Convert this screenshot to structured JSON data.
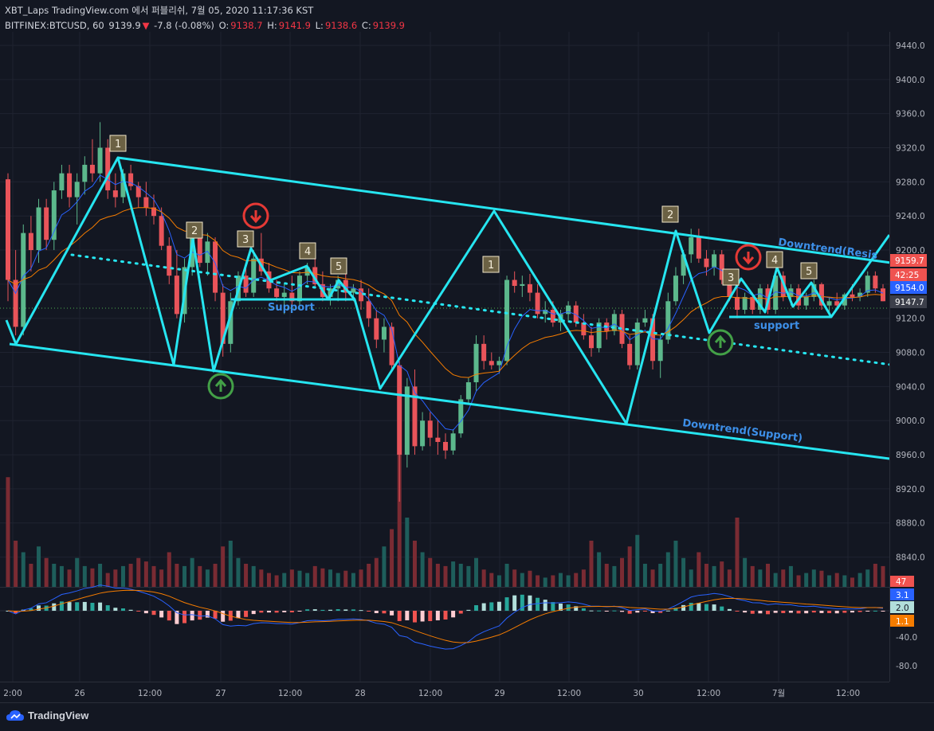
{
  "header": {
    "line1": "XBT_Laps TradingView.com 에서 퍼블리쉬, 7월 05, 2020 11:17:36 KST",
    "symbol": "BITFINEX:BTCUSD, 60",
    "last": "9139.9",
    "arrow": "▼",
    "change": "-7.8 (-0.08%)",
    "o_label": "O:",
    "o_value": "9138.7",
    "h_label": "H:",
    "h_value": "9141.9",
    "l_label": "L:",
    "l_value": "9138.6",
    "c_label": "C:",
    "c_value": "9139.9"
  },
  "footer": {
    "brand": "TradingView"
  },
  "colors": {
    "background": "#131722",
    "up": "#26a69a",
    "down": "#ef5350",
    "pattern": "#26e5f0",
    "label_blue": "#3d8fe8",
    "ma_blue": "#2962ff",
    "ma_orange": "#f57c00"
  },
  "chart_data": {
    "type": "candlestick",
    "price_axis": {
      "ticks": [
        "9440.0",
        "9400.0",
        "9360.0",
        "9320.0",
        "9280.0",
        "9240.0",
        "9200.0",
        "9160.0",
        "9120.0",
        "9080.0",
        "9040.0",
        "9000.0",
        "8960.0",
        "8920.0",
        "8880.0",
        "8840.0"
      ],
      "range": [
        8830,
        9460
      ]
    },
    "price_badges": [
      "9159.7",
      "42:25",
      "9154.0",
      "9147.7"
    ],
    "volume_badge": "47",
    "macd_axis": {
      "ticks": [
        "-40.0",
        "-80.0"
      ],
      "badges": [
        "3.1",
        "2.0",
        "1.1"
      ]
    },
    "time_axis": [
      "2:00",
      "26",
      "12:00",
      "27",
      "12:00",
      "28",
      "12:00",
      "29",
      "12:00",
      "30",
      "12:00",
      "7월",
      "12:00"
    ],
    "labels": {
      "resistance": "Downtrend(Resis",
      "support_trend": "Downtrend(Support)",
      "support_left": "Support",
      "support_right": "support",
      "points_left": [
        "1",
        "2",
        "3",
        "4",
        "5"
      ],
      "points_mid": [
        "1",
        "2"
      ],
      "points_right": [
        "3",
        "4",
        "5"
      ]
    },
    "candles": [
      [
        9283,
        9290,
        9140,
        9165
      ],
      [
        9165,
        9200,
        9100,
        9110
      ],
      [
        9110,
        9230,
        9100,
        9220
      ],
      [
        9220,
        9240,
        9175,
        9200
      ],
      [
        9200,
        9260,
        9185,
        9250
      ],
      [
        9250,
        9260,
        9200,
        9212
      ],
      [
        9212,
        9280,
        9200,
        9270
      ],
      [
        9270,
        9300,
        9260,
        9290
      ],
      [
        9290,
        9300,
        9250,
        9262
      ],
      [
        9262,
        9290,
        9230,
        9280
      ],
      [
        9280,
        9310,
        9265,
        9300
      ],
      [
        9300,
        9330,
        9280,
        9290
      ],
      [
        9290,
        9350,
        9280,
        9320
      ],
      [
        9320,
        9330,
        9260,
        9270
      ],
      [
        9270,
        9290,
        9250,
        9262
      ],
      [
        9262,
        9295,
        9255,
        9290
      ],
      [
        9290,
        9300,
        9270,
        9275
      ],
      [
        9275,
        9280,
        9250,
        9262
      ],
      [
        9262,
        9280,
        9240,
        9250
      ],
      [
        9250,
        9265,
        9230,
        9240
      ],
      [
        9240,
        9250,
        9200,
        9205
      ],
      [
        9205,
        9215,
        9160,
        9170
      ],
      [
        9170,
        9200,
        9120,
        9125
      ],
      [
        9125,
        9190,
        9115,
        9180
      ],
      [
        9180,
        9220,
        9170,
        9215
      ],
      [
        9215,
        9225,
        9180,
        9185
      ],
      [
        9185,
        9220,
        9170,
        9210
      ],
      [
        9210,
        9215,
        9140,
        9150
      ],
      [
        9150,
        9160,
        9075,
        9090
      ],
      [
        9090,
        9150,
        9080,
        9140
      ],
      [
        9140,
        9175,
        9135,
        9170
      ],
      [
        9170,
        9180,
        9145,
        9150
      ],
      [
        9150,
        9200,
        9145,
        9190
      ],
      [
        9190,
        9220,
        9170,
        9175
      ],
      [
        9175,
        9185,
        9150,
        9155
      ],
      [
        9155,
        9165,
        9140,
        9145
      ],
      [
        9145,
        9160,
        9125,
        9150
      ],
      [
        9150,
        9170,
        9130,
        9140
      ],
      [
        9140,
        9175,
        9135,
        9170
      ],
      [
        9170,
        9185,
        9160,
        9180
      ],
      [
        9180,
        9190,
        9155,
        9160
      ],
      [
        9160,
        9175,
        9140,
        9145
      ],
      [
        9145,
        9160,
        9135,
        9155
      ],
      [
        9155,
        9170,
        9140,
        9165
      ],
      [
        9165,
        9175,
        9140,
        9150
      ],
      [
        9150,
        9160,
        9140,
        9155
      ],
      [
        9155,
        9165,
        9130,
        9140
      ],
      [
        9140,
        9155,
        9110,
        9120
      ],
      [
        9120,
        9130,
        9085,
        9095
      ],
      [
        9095,
        9120,
        9080,
        9110
      ],
      [
        9110,
        9115,
        9060,
        9065
      ],
      [
        9065,
        9070,
        8905,
        8960
      ],
      [
        8960,
        9050,
        8945,
        9040
      ],
      [
        9040,
        9060,
        8960,
        8970
      ],
      [
        8970,
        9010,
        8965,
        9000
      ],
      [
        9000,
        9010,
        8970,
        8980
      ],
      [
        8980,
        9000,
        8960,
        8975
      ],
      [
        8975,
        8985,
        8955,
        8965
      ],
      [
        8965,
        8990,
        8960,
        8985
      ],
      [
        8985,
        9030,
        8980,
        9025
      ],
      [
        9025,
        9050,
        9020,
        9045
      ],
      [
        9045,
        9100,
        9035,
        9090
      ],
      [
        9090,
        9100,
        9060,
        9070
      ],
      [
        9070,
        9080,
        9060,
        9065
      ],
      [
        9065,
        9075,
        9055,
        9070
      ],
      [
        9070,
        9170,
        9065,
        9165
      ],
      [
        9165,
        9175,
        9150,
        9158
      ],
      [
        9158,
        9170,
        9145,
        9160
      ],
      [
        9160,
        9172,
        9140,
        9150
      ],
      [
        9150,
        9160,
        9120,
        9125
      ],
      [
        9125,
        9140,
        9115,
        9130
      ],
      [
        9130,
        9140,
        9110,
        9115
      ],
      [
        9115,
        9130,
        9105,
        9125
      ],
      [
        9125,
        9140,
        9115,
        9135
      ],
      [
        9135,
        9140,
        9110,
        9115
      ],
      [
        9115,
        9125,
        9095,
        9100
      ],
      [
        9100,
        9110,
        9075,
        9085
      ],
      [
        9085,
        9120,
        9080,
        9115
      ],
      [
        9115,
        9120,
        9095,
        9105
      ],
      [
        9105,
        9130,
        9100,
        9125
      ],
      [
        9125,
        9130,
        9085,
        9090
      ],
      [
        9090,
        9100,
        9060,
        9065
      ],
      [
        9065,
        9120,
        9060,
        9115
      ],
      [
        9115,
        9130,
        9110,
        9120
      ],
      [
        9120,
        9125,
        9060,
        9070
      ],
      [
        9070,
        9100,
        9050,
        9095
      ],
      [
        9095,
        9150,
        9090,
        9140
      ],
      [
        9140,
        9180,
        9135,
        9170
      ],
      [
        9170,
        9200,
        9160,
        9195
      ],
      [
        9195,
        9225,
        9185,
        9215
      ],
      [
        9215,
        9225,
        9185,
        9190
      ],
      [
        9190,
        9200,
        9170,
        9180
      ],
      [
        9180,
        9200,
        9170,
        9195
      ],
      [
        9195,
        9200,
        9160,
        9165
      ],
      [
        9165,
        9170,
        9140,
        9145
      ],
      [
        9145,
        9160,
        9120,
        9130
      ],
      [
        9130,
        9150,
        9125,
        9145
      ],
      [
        9145,
        9150,
        9125,
        9130
      ],
      [
        9130,
        9160,
        9125,
        9155
      ],
      [
        9155,
        9160,
        9125,
        9130
      ],
      [
        9130,
        9175,
        9125,
        9170
      ],
      [
        9170,
        9175,
        9140,
        9145
      ],
      [
        9145,
        9160,
        9135,
        9155
      ],
      [
        9155,
        9160,
        9130,
        9135
      ],
      [
        9135,
        9150,
        9130,
        9145
      ],
      [
        9145,
        9165,
        9140,
        9160
      ],
      [
        9160,
        9162,
        9130,
        9135
      ],
      [
        9135,
        9145,
        9125,
        9140
      ],
      [
        9140,
        9150,
        9130,
        9135
      ],
      [
        9135,
        9150,
        9130,
        9148
      ],
      [
        9148,
        9160,
        9140,
        9145
      ],
      [
        9145,
        9155,
        9140,
        9150
      ],
      [
        9150,
        9175,
        9145,
        9170
      ],
      [
        9170,
        9175,
        9150,
        9155
      ],
      [
        9155,
        9160,
        9140,
        9140
      ]
    ],
    "volume": [
      95,
      40,
      30,
      20,
      35,
      25,
      20,
      18,
      15,
      25,
      18,
      16,
      20,
      12,
      15,
      18,
      20,
      25,
      22,
      18,
      15,
      30,
      20,
      18,
      25,
      18,
      15,
      20,
      35,
      40,
      25,
      20,
      18,
      15,
      12,
      10,
      12,
      15,
      14,
      12,
      18,
      16,
      15,
      12,
      14,
      12,
      15,
      20,
      25,
      35,
      50,
      120,
      60,
      40,
      30,
      25,
      20,
      18,
      22,
      20,
      18,
      25,
      15,
      12,
      10,
      20,
      15,
      12,
      14,
      10,
      8,
      10,
      12,
      10,
      12,
      15,
      40,
      30,
      20,
      18,
      25,
      35,
      45,
      20,
      15,
      20,
      30,
      40,
      25,
      15,
      30,
      20,
      18,
      22,
      15,
      60,
      25,
      18,
      15,
      20,
      12,
      15,
      18,
      10,
      12,
      15,
      14,
      10,
      12,
      10,
      8,
      12,
      15,
      20,
      18
    ]
  }
}
